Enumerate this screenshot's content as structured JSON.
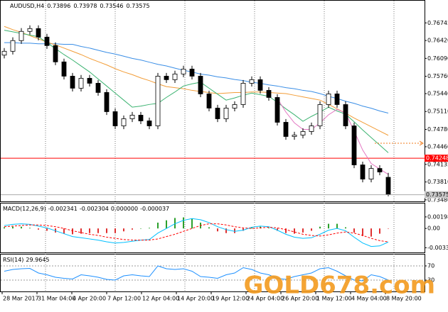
{
  "chart_data": [
    {
      "type": "candlestick",
      "title": "AUDUSD,H4",
      "up_color": "#ffffff",
      "down_color": "#000000",
      "open": [
        0.7615,
        0.76221,
        0.76418,
        0.76588,
        0.7664,
        0.76483,
        0.76326,
        0.76025,
        0.75762,
        0.7554,
        0.75723,
        0.75631,
        0.75461,
        0.75107,
        0.74845,
        0.74976,
        0.75042,
        0.74937,
        0.74845,
        0.75762,
        0.75697,
        0.75802,
        0.75893,
        0.75762,
        0.75435,
        0.75173,
        0.74976,
        0.75173,
        0.75238,
        0.75631,
        0.75697,
        0.755,
        0.75369,
        0.74911,
        0.74649,
        0.74675,
        0.74741,
        0.74845,
        0.75238,
        0.75435,
        0.75238,
        0.74845,
        0.74125,
        0.73863,
        0.74059,
        0.73896
      ],
      "high": [
        0.76281,
        0.76478,
        0.76648,
        0.767,
        0.767,
        0.76543,
        0.76386,
        0.76085,
        0.75822,
        0.75783,
        0.75783,
        0.75691,
        0.75521,
        0.75167,
        0.75036,
        0.75102,
        0.75102,
        0.74997,
        0.75822,
        0.75822,
        0.75862,
        0.75953,
        0.75953,
        0.75822,
        0.75495,
        0.75233,
        0.75233,
        0.75298,
        0.75691,
        0.75757,
        0.75757,
        0.7556,
        0.75429,
        0.74971,
        0.74735,
        0.74801,
        0.74905,
        0.75298,
        0.75495,
        0.75495,
        0.75298,
        0.74905,
        0.74185,
        0.74119,
        0.74119,
        0.73978
      ],
      "low": [
        0.7609,
        0.76161,
        0.76358,
        0.76528,
        0.76423,
        0.76266,
        0.75965,
        0.75702,
        0.7548,
        0.7548,
        0.75571,
        0.75401,
        0.75047,
        0.74785,
        0.74785,
        0.74916,
        0.74877,
        0.74785,
        0.74785,
        0.75637,
        0.75637,
        0.75742,
        0.75702,
        0.75375,
        0.75113,
        0.74916,
        0.74916,
        0.75113,
        0.75178,
        0.75571,
        0.7544,
        0.75309,
        0.74851,
        0.74589,
        0.74589,
        0.74615,
        0.74681,
        0.74785,
        0.75178,
        0.75178,
        0.74785,
        0.74065,
        0.73803,
        0.73803,
        0.73934,
        0.73546
      ],
      "close": [
        0.76221,
        0.76418,
        0.76588,
        0.7664,
        0.76483,
        0.76326,
        0.76025,
        0.75762,
        0.7554,
        0.75723,
        0.75631,
        0.75461,
        0.75107,
        0.74845,
        0.74976,
        0.75042,
        0.74937,
        0.74845,
        0.75762,
        0.75697,
        0.75802,
        0.75893,
        0.75762,
        0.75435,
        0.75173,
        0.74976,
        0.75173,
        0.75238,
        0.75631,
        0.75697,
        0.755,
        0.75369,
        0.74911,
        0.74649,
        0.74675,
        0.74741,
        0.74845,
        0.75238,
        0.75435,
        0.75238,
        0.74845,
        0.74125,
        0.73863,
        0.74059,
        0.73994,
        0.73575
      ],
      "series": [
        {
          "color": "#3a8ee6",
          "values": [
            0.7638,
            0.7638,
            0.7637,
            0.7637,
            0.7636,
            0.7636,
            0.7636,
            0.7635,
            0.7635,
            0.7631,
            0.7628,
            0.7624,
            0.762,
            0.7617,
            0.7613,
            0.7609,
            0.7606,
            0.7602,
            0.7598,
            0.7595,
            0.7591,
            0.7587,
            0.7584,
            0.758,
            0.7578,
            0.7575,
            0.7573,
            0.757,
            0.7568,
            0.7565,
            0.7563,
            0.756,
            0.7558,
            0.7555,
            0.7553,
            0.755,
            0.7548,
            0.7544,
            0.7539,
            0.7535,
            0.753,
            0.7526,
            0.7521,
            0.7517,
            0.7512,
            0.7508
          ]
        },
        {
          "color": "#f29d38",
          "values": [
            0.7668,
            0.7662,
            0.7657,
            0.7651,
            0.7645,
            0.7639,
            0.7634,
            0.7628,
            0.7622,
            0.7616,
            0.7609,
            0.7603,
            0.7597,
            0.759,
            0.7584,
            0.7579,
            0.7573,
            0.7568,
            0.7562,
            0.7557,
            0.7555,
            0.7553,
            0.755,
            0.7548,
            0.7546,
            0.7544,
            0.7545,
            0.7546,
            0.7546,
            0.7547,
            0.7547,
            0.7546,
            0.7545,
            0.7544,
            0.7541,
            0.7538,
            0.7535,
            0.7532,
            0.7524,
            0.7516,
            0.7508,
            0.7499,
            0.7491,
            0.7483,
            0.7475,
            0.7467
          ]
        },
        {
          "color": "#3cb371",
          "values": [
            0.7661,
            0.7658,
            0.7655,
            0.7652,
            0.7649,
            0.7638,
            0.7627,
            0.7616,
            0.7606,
            0.7595,
            0.7584,
            0.7571,
            0.7558,
            0.7545,
            0.7532,
            0.7519,
            0.7521,
            0.7524,
            0.7526,
            0.7537,
            0.7547,
            0.7558,
            0.7562,
            0.7565,
            0.7554,
            0.7543,
            0.7532,
            0.7536,
            0.7541,
            0.7545,
            0.7542,
            0.7539,
            0.7528,
            0.7516,
            0.7505,
            0.7493,
            0.7502,
            0.751,
            0.7519,
            0.7512,
            0.7506,
            0.7492,
            0.7477,
            0.7463,
            0.7449,
            0.7435
          ]
        },
        {
          "color": "#e377c2",
          "values": [
            null,
            null,
            null,
            null,
            null,
            null,
            null,
            null,
            null,
            null,
            null,
            null,
            null,
            null,
            null,
            null,
            null,
            null,
            null,
            null,
            null,
            null,
            null,
            null,
            null,
            null,
            null,
            null,
            null,
            null,
            null,
            null,
            0.7535,
            0.751,
            0.749,
            0.7478,
            0.7478,
            0.749,
            0.7505,
            0.7515,
            0.7508,
            0.7475,
            0.744,
            0.7415,
            0.7405,
            0.7395
          ]
        }
      ],
      "hline": {
        "value": 0.74248,
        "color": "#ff0000"
      },
      "ylim": [
        0.73465,
        0.7701
      ],
      "yticks": [
        0.76745,
        {
          "value": 0.7642,
          "label": "0.76420"
        },
        {
          "value": 0.7609,
          "label": "0.76090"
        },
        {
          "value": 0.7576,
          "label": "0.75760"
        },
        {
          "value": 0.7544,
          "label": "0.75440"
        },
        {
          "value": 0.7511,
          "label": "0.75110"
        },
        {
          "value": 0.7478,
          "label": "0.74780"
        },
        {
          "value": 0.7446,
          "label": "0.74460"
        },
        0.74135,
        {
          "value": 0.7381,
          "label": "0.73810"
        },
        {
          "value": 0.7348,
          "label": "0.73480"
        }
      ]
    },
    {
      "type": "macd",
      "title": "MACD(12,26,9)",
      "up_color": "#2ca02c",
      "down_color": "#e03030",
      "aux_value": {
        "value": 0,
        "label": "0.000000"
      },
      "series": [
        {
          "color": "#00bfff",
          "values": [
            0.0005,
            0.0007,
            0.0008,
            0.0007,
            0.0004,
            0.0001,
            -0.0004,
            -0.0009,
            -0.0014,
            -0.0016,
            -0.0018,
            -0.002,
            -0.0023,
            -0.0025,
            -0.0024,
            -0.0022,
            -0.002,
            -0.0019,
            -0.0008,
            0,
            0.0008,
            0.0014,
            0.0017,
            0.0015,
            0.001,
            0.0003,
            -0.0002,
            -0.0005,
            -0.0003,
            0.0002,
            0.0004,
            0.0003,
            -0.0003,
            -0.001,
            -0.0015,
            -0.0017,
            -0.0016,
            -0.001,
            -0.0003,
            0,
            -0.0004,
            -0.0015,
            -0.0025,
            -0.0031,
            -0.003,
            -0.002341
          ]
        },
        {
          "color": "#ff0000",
          "values": [
            0.0003,
            0.0004,
            0.0005,
            0.0006,
            0.0006,
            0.0005,
            0.0003,
            0,
            -0.0004,
            -0.0007,
            -0.001,
            -0.0012,
            -0.0015,
            -0.0017,
            -0.0019,
            -0.002,
            -0.002,
            -0.002,
            -0.0018,
            -0.0014,
            -0.001,
            -0.0005,
            0,
            0.0005,
            0.0008,
            0.0008,
            0.0006,
            0.0003,
            0.0001,
            0,
            0.0001,
            0.0002,
            0.0001,
            -0.0002,
            -0.0006,
            -0.001,
            -0.0012,
            -0.0013,
            -0.0011,
            -0.0008,
            -0.0006,
            -0.0008,
            -0.0012,
            -0.0017,
            -0.0021,
            -0.002304
          ]
        },
        {
          "values": [
            0.0002,
            0.0003,
            0.0003,
            0.0001,
            -0.0002,
            -0.0004,
            -0.0007,
            -0.0009,
            -0.001,
            -0.0009,
            -0.0008,
            -0.0008,
            -0.0008,
            -0.0008,
            -0.0005,
            -0.0002,
            0,
            0.0001,
            0.001,
            0.0014,
            0.0018,
            0.0019,
            0.0017,
            0.001,
            0.0002,
            -0.0005,
            -0.0008,
            -0.0008,
            -0.0004,
            0.0002,
            0.0003,
            0.0001,
            -0.0004,
            -0.0008,
            -0.0009,
            -0.0007,
            -0.0004,
            0.0003,
            0.0008,
            0.0008,
            0.0002,
            -0.0007,
            -0.0013,
            -0.0014,
            -0.0009,
            -3.7e-05
          ]
        }
      ],
      "ylim": [
        -0.004,
        0.0027
      ],
      "yticks": [
        0.001982,
        {
          "value": 0,
          "label": "0.00"
        },
        -0.00331
      ]
    },
    {
      "type": "rsi",
      "title": "RSI(14)",
      "series": [
        {
          "color": "#1e90ff",
          "values": [
            55,
            60,
            62,
            63,
            50,
            45,
            38,
            35,
            33,
            45,
            42,
            38,
            32,
            30,
            42,
            45,
            42,
            40,
            70,
            62,
            60,
            62,
            55,
            40,
            38,
            35,
            45,
            50,
            65,
            60,
            50,
            45,
            35,
            32,
            40,
            45,
            50,
            62,
            65,
            55,
            42,
            30,
            28,
            45,
            40,
            29.9645
          ]
        }
      ],
      "ylim": [
        0,
        100
      ],
      "yticks": [
        70,
        30
      ]
    }
  ],
  "x_labels": [
    "28 Mar 2017",
    "31 Mar 04:00",
    "4 Apr 20:00",
    "7 Apr 12:00",
    "12 Apr 04:00",
    "14 Apr 20:00",
    "19 Apr 12:00",
    "24 Apr 04:00",
    "26 Apr 20:00",
    "1 May 12:00",
    "4 May 04:00",
    "8 May 20:00"
  ],
  "watermark": "GOLD678.com"
}
